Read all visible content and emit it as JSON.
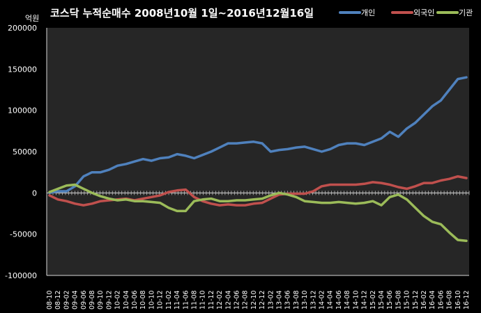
{
  "chart_data": {
    "type": "line",
    "title": "코스닥 누적순매수 2008년10월 1일~2016년12월16일",
    "y_unit_label": "억원",
    "ylim": [
      -100000,
      200000
    ],
    "yticks": [
      -100000,
      -50000,
      0,
      50000,
      100000,
      150000,
      200000
    ],
    "legend_position": "top-right",
    "grid": false,
    "categories": [
      "08-10",
      "08-12",
      "09-02",
      "09-04",
      "09-06",
      "09-08",
      "09-10",
      "09-12",
      "10-02",
      "10-04",
      "10-06",
      "10-08",
      "10-10",
      "10-12",
      "11-02",
      "11-04",
      "11-06",
      "11-08",
      "11-10",
      "11-12",
      "12-02",
      "12-04",
      "12-06",
      "12-08",
      "12-10",
      "12-12",
      "13-02",
      "13-04",
      "13-06",
      "13-08",
      "13-10",
      "13-12",
      "14-02",
      "14-04",
      "14-06",
      "14-08",
      "14-10",
      "14-12",
      "15-02",
      "15-04",
      "15-06",
      "15-08",
      "15-10",
      "15-12",
      "16-02",
      "16-04",
      "16-06",
      "16-08",
      "16-10",
      "16-12"
    ],
    "series": [
      {
        "name": "개인",
        "color": "#4f81bd",
        "values": [
          0,
          2000,
          2000,
          8000,
          20000,
          25000,
          25000,
          28000,
          33000,
          35000,
          38000,
          41000,
          39000,
          42000,
          43000,
          47000,
          45000,
          42000,
          46000,
          50000,
          55000,
          60000,
          60000,
          61000,
          62000,
          60000,
          50000,
          52000,
          53000,
          55000,
          56000,
          53000,
          50000,
          53000,
          58000,
          60000,
          60000,
          58000,
          62000,
          66000,
          74000,
          68000,
          78000,
          85000,
          95000,
          105000,
          112000,
          125000,
          138000,
          140000
        ]
      },
      {
        "name": "외국인",
        "color": "#c0504d",
        "values": [
          -3000,
          -8000,
          -10000,
          -13000,
          -15000,
          -13000,
          -10000,
          -9000,
          -8000,
          -7000,
          -9000,
          -7000,
          -5000,
          -3000,
          1000,
          3000,
          4000,
          -5000,
          -10000,
          -13000,
          -15000,
          -14000,
          -15000,
          -15000,
          -13000,
          -12000,
          -7000,
          -2000,
          -1000,
          -1000,
          -1000,
          2000,
          8000,
          10000,
          10000,
          10000,
          10000,
          11000,
          13000,
          12000,
          10000,
          7000,
          5000,
          8000,
          12000,
          12000,
          15000,
          17000,
          20000,
          18000
        ]
      },
      {
        "name": "기관",
        "color": "#9bbb59",
        "values": [
          1000,
          5000,
          9000,
          10000,
          5000,
          0,
          -4000,
          -7000,
          -9000,
          -8000,
          -10000,
          -10000,
          -11000,
          -12000,
          -18000,
          -22000,
          -22000,
          -10000,
          -8000,
          -7000,
          -10000,
          -10000,
          -9000,
          -9000,
          -8000,
          -7000,
          -3000,
          0,
          -2000,
          -5000,
          -10000,
          -11000,
          -12000,
          -12000,
          -11000,
          -12000,
          -13000,
          -12000,
          -10000,
          -15000,
          -5000,
          -2000,
          -8000,
          -18000,
          -28000,
          -35000,
          -38000,
          -48000,
          -57000,
          -58000
        ]
      }
    ]
  }
}
